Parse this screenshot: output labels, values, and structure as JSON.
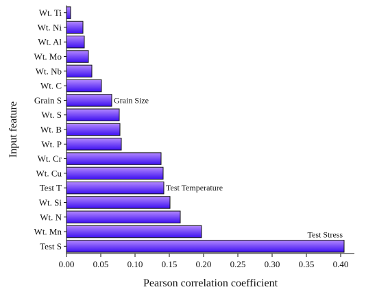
{
  "chart_data": {
    "type": "bar",
    "orientation": "horizontal",
    "xlabel": "Pearson correlation coefficient",
    "ylabel": "Input feature",
    "xlim": [
      0,
      0.42
    ],
    "xticks": [
      "0.00",
      "0.05",
      "0.10",
      "0.15",
      "0.20",
      "0.25",
      "0.30",
      "0.35",
      "0.40"
    ],
    "grid": false,
    "bar_gradient": [
      "#b388ff",
      "#3d10f0"
    ],
    "bar_stroke": "#111111",
    "categories": [
      "Wt. Ti",
      "Wt. Ni",
      "Wt. Al",
      "Wt. Mo",
      "Wt. Nb",
      "Wt. C",
      "Grain S",
      "Wt. S",
      "Wt. B",
      "Wt. P",
      "Wt. Cr",
      "Wt. Cu",
      "Test T",
      "Wt. Si",
      "Wt. N",
      "Wt. Mn",
      "Test S"
    ],
    "values": [
      0.006,
      0.024,
      0.026,
      0.032,
      0.037,
      0.051,
      0.066,
      0.077,
      0.078,
      0.08,
      0.138,
      0.141,
      0.142,
      0.151,
      0.166,
      0.197,
      0.405
    ],
    "annotations": [
      {
        "text": "Grain Size",
        "category": "Grain S",
        "position": "right-of-bar"
      },
      {
        "text": "Test Temperature",
        "category": "Test T",
        "position": "right-of-bar"
      },
      {
        "text": "Test Stress",
        "category": "Test S",
        "position": "above-bar-end"
      }
    ]
  }
}
